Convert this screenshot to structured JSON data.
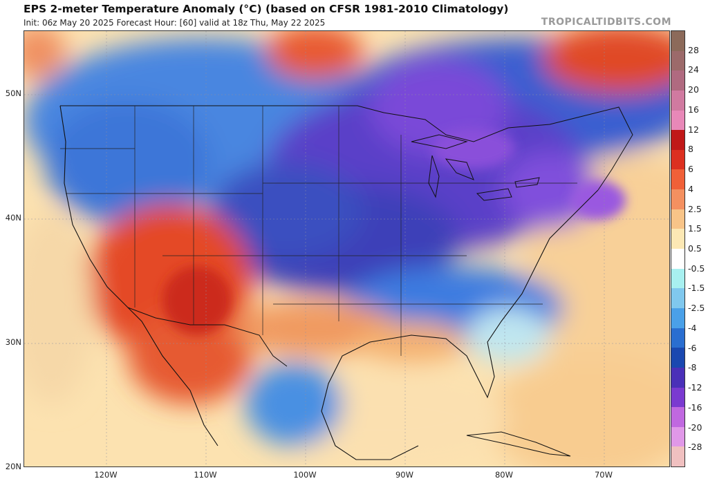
{
  "header": {
    "title": "EPS 2-meter Temperature Anomaly (°C) (based on CFSR 1981-2010 Climatology)",
    "subtitle": "Init: 06z May 20 2025   Forecast Hour: [60]   valid at 18z Thu, May 22 2025",
    "brand": "TROPICALTIDBITS.COM"
  },
  "map": {
    "lat_labels": [
      "50N",
      "40N",
      "30N",
      "20N"
    ],
    "lon_labels": [
      "120W",
      "110W",
      "100W",
      "90W",
      "80W",
      "70W"
    ],
    "anomaly_regions": [
      {
        "region": "Great Lakes / Northeast / Central Canada",
        "level": "cold",
        "anomaly_c": -10
      },
      {
        "region": "Northern Plains / Midwest",
        "level": "cold",
        "anomaly_c": -6
      },
      {
        "region": "Pacific Northwest / Northern Rockies",
        "level": "cool",
        "anomaly_c": -3
      },
      {
        "region": "Southeast US",
        "level": "cool",
        "anomaly_c": -2
      },
      {
        "region": "Southwest US / Northwest Mexico",
        "level": "warm",
        "anomaly_c": 4
      },
      {
        "region": "Texas / Gulf Coast",
        "level": "warm",
        "anomaly_c": 2
      },
      {
        "region": "Atlantic Ocean / Gulf of Mexico",
        "level": "mild-warm",
        "anomaly_c": 1
      },
      {
        "region": "Northern Quebec / Northwest Canada",
        "level": "warm",
        "anomaly_c": 4
      },
      {
        "region": "Central Mexico",
        "level": "cool",
        "anomaly_c": -2
      }
    ]
  },
  "colorbar": {
    "labels": [
      "28",
      "24",
      "20",
      "16",
      "12",
      "8",
      "6",
      "4",
      "2.5",
      "1.5",
      "0.5",
      "-0.5",
      "-1.5",
      "-2.5",
      "-4",
      "-6",
      "-8",
      "-12",
      "-16",
      "-20",
      "-28"
    ],
    "colors": [
      "#8c6a5a",
      "#9c6a6a",
      "#b06a80",
      "#d07aa0",
      "#e888b8",
      "#c01818",
      "#dc3020",
      "#f06038",
      "#f49060",
      "#f8c488",
      "#fce8b4",
      "#ffffff",
      "#a8f0f0",
      "#80c8ee",
      "#4aa0e8",
      "#2a6ed0",
      "#1a48b0",
      "#4a30b8",
      "#7a3ad0",
      "#c068e0",
      "#e098e8",
      "#f0c0c0"
    ]
  }
}
